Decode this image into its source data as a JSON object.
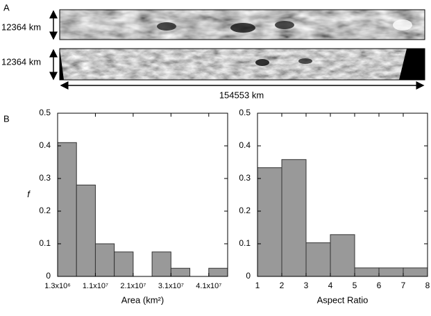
{
  "panel_a": {
    "label": "A",
    "height_top": "12364 km",
    "height_bottom": "12364 km",
    "width": "154553 km"
  },
  "panel_b": {
    "label": "B"
  },
  "chart_data": [
    {
      "type": "histogram",
      "x_label": "Area (km²)",
      "y_label": "f",
      "bins": [
        1300000,
        6300000,
        11300000,
        16300000,
        21300000,
        26300000,
        31300000,
        36300000,
        41300000,
        46300000
      ],
      "values": [
        0.41,
        0.28,
        0.1,
        0.075,
        0,
        0.075,
        0.025,
        0,
        0.025
      ],
      "color": "#999999",
      "xlim": [
        1300000,
        46300000
      ],
      "xticks": [
        {
          "value": 1300000,
          "label": "1.3x10⁶"
        },
        {
          "value": 11300000,
          "label": "1.1x10⁷"
        },
        {
          "value": 21300000,
          "label": "2.1x10⁷"
        },
        {
          "value": 31300000,
          "label": "3.1x10⁷"
        },
        {
          "value": 41300000,
          "label": "4.1x10⁷"
        }
      ],
      "ylim": [
        0,
        0.5
      ],
      "yticks": [
        0,
        0.1,
        0.2,
        0.3,
        0.4,
        0.5
      ],
      "grid": false
    },
    {
      "type": "histogram",
      "x_label": "Aspect Ratio",
      "bins": [
        1,
        2,
        3,
        4,
        5,
        6,
        7,
        8
      ],
      "values": [
        0.333,
        0.358,
        0.103,
        0.128,
        0.026,
        0.026,
        0.026
      ],
      "color": "#999999",
      "xlim": [
        1,
        8
      ],
      "xticks": [
        1,
        2,
        3,
        4,
        5,
        6,
        7,
        8
      ],
      "ylim": [
        0,
        0.5
      ],
      "yticks": [
        0,
        0.1,
        0.2,
        0.3,
        0.4,
        0.5
      ],
      "grid": false
    }
  ]
}
